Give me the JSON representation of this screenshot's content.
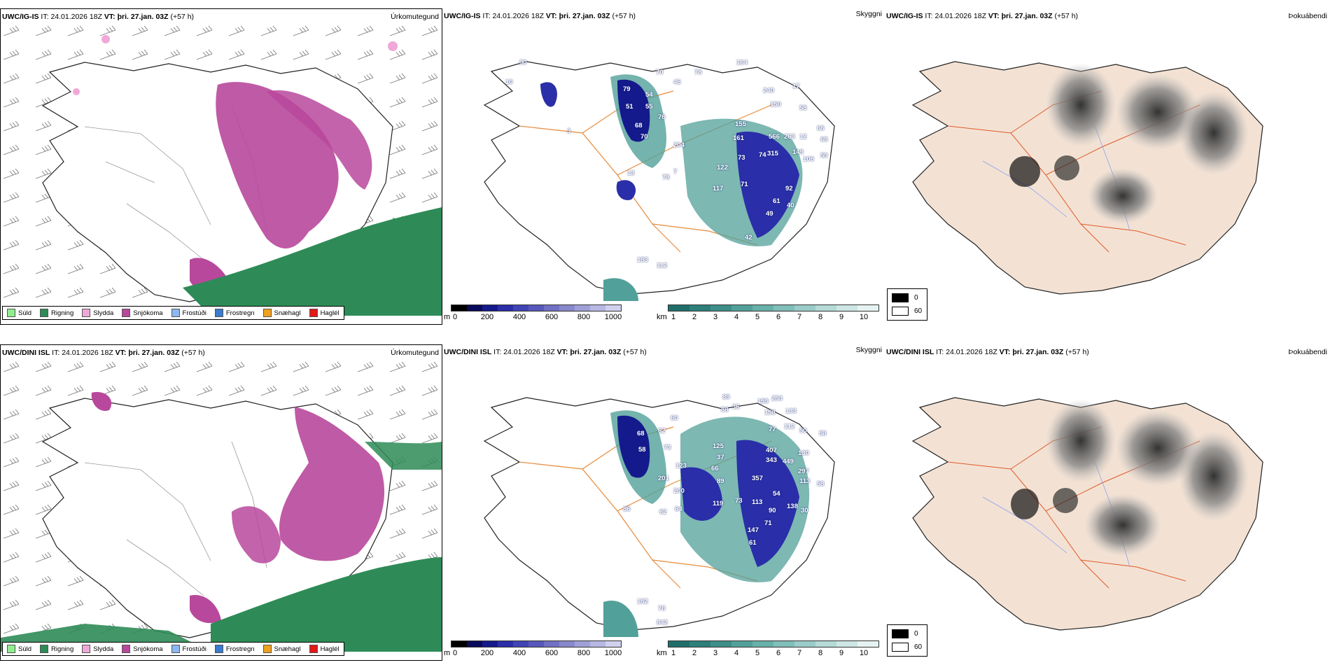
{
  "rows": [
    {
      "model": "UWC/IG-IS",
      "it_label": "IT:",
      "it_value": "24.01.2026 18Z",
      "vt_label": "VT:",
      "vt_value": "þri. 27.jan. 03Z",
      "lead": "(+57 h)",
      "cloud_labels": [
        "90",
        "10",
        "79",
        "54",
        "51",
        "55",
        "68",
        "70",
        "76",
        "204",
        "46",
        "70",
        "78",
        "164",
        "240",
        "150",
        "17",
        "58",
        "12",
        "66",
        "68",
        "59",
        "155",
        "161",
        "73",
        "566",
        "263",
        "315",
        "149",
        "106",
        "92",
        "61",
        "49",
        "40",
        "42",
        "122",
        "117",
        "71",
        "78",
        "13",
        "153",
        "112",
        "7",
        "3",
        "74"
      ]
    },
    {
      "model": "UWC/DINI ISL",
      "it_label": "IT:",
      "it_value": "24.01.2026 18Z",
      "vt_label": "VT:",
      "vt_value": "þri. 27.jan. 03Z",
      "lead": "(+57 h)",
      "cloud_labels": [
        "89",
        "88",
        "36",
        "159",
        "253",
        "158",
        "133",
        "112",
        "77",
        "50",
        "58",
        "62",
        "68",
        "58",
        "73",
        "123",
        "201",
        "60",
        "125",
        "37",
        "66",
        "407",
        "343",
        "449",
        "130",
        "297",
        "113",
        "58",
        "89",
        "357",
        "113",
        "54",
        "119",
        "73",
        "90",
        "71",
        "138",
        "30",
        "147",
        "61",
        "86",
        "62",
        "64",
        "78",
        "152",
        "842",
        "200"
      ]
    }
  ],
  "panel_types": {
    "precip": "Úrkomutegund",
    "cloud": "Skyggni",
    "fog": "Þokuábendi"
  },
  "precip_legend": [
    {
      "label": "Súld",
      "color": "#90ee90"
    },
    {
      "label": "Rigning",
      "color": "#2e8b57"
    },
    {
      "label": "Slydda",
      "color": "#f0a8d8"
    },
    {
      "label": "Snjókoma",
      "color": "#b8489c"
    },
    {
      "label": "Frostúði",
      "color": "#8cb8f0"
    },
    {
      "label": "Frostregn",
      "color": "#3a7ad0"
    },
    {
      "label": "Snæhagl",
      "color": "#f0a020"
    },
    {
      "label": "Haglél",
      "color": "#e01818"
    }
  ],
  "cloudbase_bar": {
    "unit": "m",
    "ticks": [
      "0",
      "200",
      "400",
      "600",
      "800",
      "1000"
    ],
    "colors": [
      "#000000",
      "#0a0a5a",
      "#141a8c",
      "#2a2ea8",
      "#4044b4",
      "#5858bc",
      "#7070c4",
      "#8888cc",
      "#a0a0d8",
      "#b8b8e4",
      "#d0d0ee"
    ]
  },
  "visibility_bar": {
    "unit": "km",
    "ticks": [
      "1",
      "2",
      "3",
      "4",
      "5",
      "6",
      "7",
      "8",
      "9",
      "10"
    ],
    "colors": [
      "#1f6e6a",
      "#2d7f7a",
      "#3e8f89",
      "#52a09a",
      "#68b0aa",
      "#80bfba",
      "#9acdc9",
      "#b4dad7",
      "#cde7e5",
      "#e6f3f2"
    ]
  },
  "fog_legend": {
    "values": [
      "0",
      "60"
    ]
  },
  "colors": {
    "land_fog": "#f3e2d4",
    "roads": "#e88a3a",
    "rivers": "#8aa0f0",
    "coast": "#222222"
  }
}
